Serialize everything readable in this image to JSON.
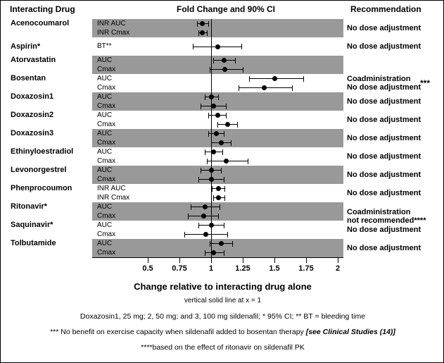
{
  "title_row": {
    "drug_col": "Interacting Drug",
    "plot_col": "Fold Change and 90% CI",
    "rec_col": "Recommendation"
  },
  "chart_data": {
    "type": "scatter",
    "subtype": "forest-plot-errorbars",
    "title": "Fold Change and 90% CI",
    "xlabel": "Change relative to interacting drug alone",
    "xlabel_note": "vertical solid line at x = 1",
    "x_range": [
      0.5,
      2
    ],
    "x_ticks": [
      0.5,
      0.75,
      1,
      1.25,
      1.5,
      1.75,
      2
    ],
    "x_tick_labels": [
      "0.5",
      "0.75",
      "1",
      "1.25",
      "1.5",
      "1.75",
      "2"
    ],
    "reference_line_x": 1,
    "grid": false,
    "band_gray": "#999999",
    "legend_position": "none",
    "groups": [
      {
        "drug": "Acenocoumarol",
        "rows": [
          {
            "param": "INR AUC",
            "est": 0.93,
            "lo": 0.89,
            "hi": 0.98
          },
          {
            "param": "INR Cmax",
            "est": 0.93,
            "lo": 0.9,
            "hi": 0.97
          }
        ],
        "rec": [
          "No dose adjustment"
        ]
      },
      {
        "drug": "Aspirin*",
        "rows": [
          {
            "param": "BT**",
            "est": 1.05,
            "lo": 0.86,
            "hi": 1.24
          }
        ],
        "rec": [
          "No dose adjustment"
        ]
      },
      {
        "drug": "Atorvastatin",
        "rows": [
          {
            "param": "AUC",
            "est": 1.1,
            "lo": 1.02,
            "hi": 1.19
          },
          {
            "param": "Cmax",
            "est": 1.11,
            "lo": 0.99,
            "hi": 1.25
          }
        ],
        "rec": []
      },
      {
        "drug": "Bosentan",
        "rows": [
          {
            "param": "AUC",
            "est": 1.5,
            "lo": 1.3,
            "hi": 1.73
          },
          {
            "param": "Cmax",
            "est": 1.42,
            "lo": 1.22,
            "hi": 1.64
          }
        ],
        "rec": [
          "Coadministration",
          "No dose adjustment"
        ],
        "rec_marker": "***"
      },
      {
        "drug": "Doxazosin1",
        "rows": [
          {
            "param": "AUC",
            "est": 1.0,
            "lo": 0.95,
            "hi": 1.06
          },
          {
            "param": "Cmax",
            "est": 1.02,
            "lo": 0.92,
            "hi": 1.12
          }
        ],
        "rec": [
          "No dose adjustment"
        ]
      },
      {
        "drug": "Doxazosin2",
        "rows": [
          {
            "param": "AUC",
            "est": 1.05,
            "lo": 0.98,
            "hi": 1.12
          },
          {
            "param": "Cmax",
            "est": 1.13,
            "lo": 1.05,
            "hi": 1.21
          }
        ],
        "rec": [
          "No dose adjustment"
        ]
      },
      {
        "drug": "Doxazosin3",
        "rows": [
          {
            "param": "AUC",
            "est": 1.04,
            "lo": 0.98,
            "hi": 1.1
          },
          {
            "param": "Cmax",
            "est": 1.08,
            "lo": 1.0,
            "hi": 1.16
          }
        ],
        "rec": [
          "No dose adjustment"
        ]
      },
      {
        "drug": "Ethinyloestradiol",
        "rows": [
          {
            "param": "AUC",
            "est": 1.02,
            "lo": 0.95,
            "hi": 1.09
          },
          {
            "param": "Cmax",
            "est": 1.12,
            "lo": 0.97,
            "hi": 1.29
          }
        ],
        "rec": [
          "No dose adjustment"
        ]
      },
      {
        "drug": "Levonorgestrel",
        "rows": [
          {
            "param": "AUC",
            "est": 1.0,
            "lo": 0.92,
            "hi": 1.08
          },
          {
            "param": "Cmax",
            "est": 1.0,
            "lo": 0.9,
            "hi": 1.1
          }
        ],
        "rec": [
          "No dose adjustment"
        ]
      },
      {
        "drug": "Phenprocoumon",
        "rows": [
          {
            "param": "INR AUC",
            "est": 1.06,
            "lo": 1.01,
            "hi": 1.11
          },
          {
            "param": "INR Cmax",
            "est": 1.06,
            "lo": 1.02,
            "hi": 1.11
          }
        ],
        "rec": [
          "No dose adjustment"
        ]
      },
      {
        "drug": "Ritonavir*",
        "rows": [
          {
            "param": "AUC",
            "est": 0.95,
            "lo": 0.84,
            "hi": 1.07
          },
          {
            "param": "Cmax",
            "est": 0.94,
            "lo": 0.82,
            "hi": 1.06
          }
        ],
        "rec": [
          "Coadministration",
          "not recommended****"
        ],
        "rec_dy": 7
      },
      {
        "drug": "Saquinavir*",
        "rows": [
          {
            "param": "AUC",
            "est": 1.0,
            "lo": 0.9,
            "hi": 1.1
          },
          {
            "param": "Cmax",
            "est": 0.96,
            "lo": 0.79,
            "hi": 1.13
          }
        ],
        "rec": [
          "No dose adjustment"
        ]
      },
      {
        "drug": "Tolbutamide",
        "rows": [
          {
            "param": "AUC",
            "est": 1.08,
            "lo": 0.99,
            "hi": 1.17
          },
          {
            "param": "Cmax",
            "est": 1.02,
            "lo": 0.95,
            "hi": 1.1
          }
        ],
        "rec": [
          "No dose adjustment"
        ]
      }
    ]
  },
  "footnotes": [
    {
      "text": "Doxazosin1, 25 mg; 2, 50 mg; and 3, 100 mg sildenafil; * 95% CI; ** BT = bleeding time"
    },
    {
      "text": "*** No benefit on exercise capacity when sildenafil added to bosentan therapy ",
      "ref": "[see Clinical Studies (14)]"
    },
    {
      "text": "****based on the effect of ritonavir on sildenafil PK"
    }
  ]
}
